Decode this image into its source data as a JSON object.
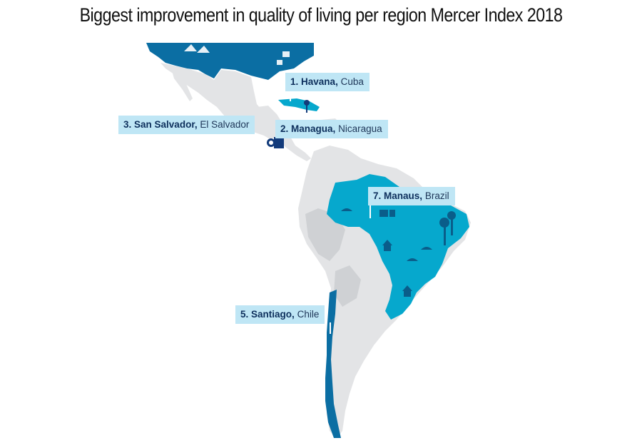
{
  "title": "Biggest improvement in quality of living per region Mercer Index 2018",
  "colors": {
    "land": "#e3e4e6",
    "land_dark": "#cfd1d4",
    "usa": "#0b6ea3",
    "highlight": "#06a8cd",
    "marker": "#123a7a",
    "label_bg": "#bfe6f5"
  },
  "labels": [
    {
      "rank": "1.",
      "city": "Havana",
      "country": "Cuba"
    },
    {
      "rank": "2.",
      "city": "Managua",
      "country": "Nicaragua"
    },
    {
      "rank": "3.",
      "city": "San Salvador",
      "country": "El Salvador"
    },
    {
      "rank": "7.",
      "city": "Manaus",
      "country": "Brazil"
    },
    {
      "rank": "5.",
      "city": "Santiago",
      "country": "Chile"
    }
  ]
}
